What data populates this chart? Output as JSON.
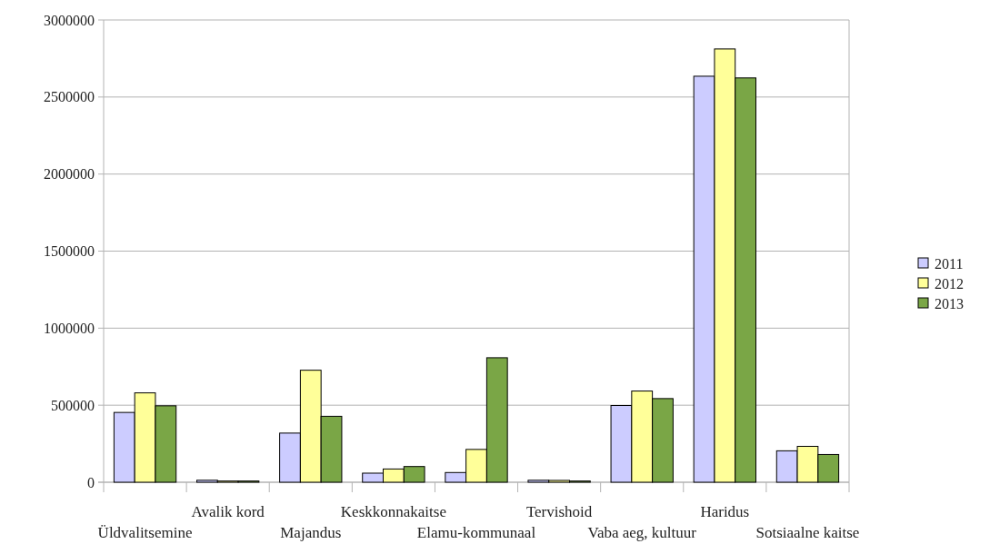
{
  "chart_data": {
    "type": "bar",
    "categories": [
      "Üldvalitsemine",
      "Avalik kord",
      "Majandus",
      "Keskkonnakaitse",
      "Elamu-kommunaal",
      "Tervishoid",
      "Vaba aeg, kultuur",
      "Haridus",
      "Sotsiaalne kaitse"
    ],
    "series": [
      {
        "name": "2011",
        "color": "#ccccff",
        "values": [
          453000,
          13000,
          319000,
          59000,
          63000,
          13000,
          498000,
          2635000,
          204000
        ]
      },
      {
        "name": "2012",
        "color": "#ffff99",
        "values": [
          580000,
          8000,
          727000,
          86000,
          213000,
          12000,
          592000,
          2812000,
          233000
        ]
      },
      {
        "name": "2013",
        "color": "#7aa646",
        "values": [
          496000,
          8000,
          428000,
          102000,
          808000,
          8000,
          543000,
          2624000,
          180000
        ]
      }
    ],
    "ylim": [
      0,
      3000000
    ],
    "yticks": [
      0,
      500000,
      1000000,
      1500000,
      2000000,
      2500000,
      3000000
    ],
    "grid": "y",
    "legend": "right"
  }
}
